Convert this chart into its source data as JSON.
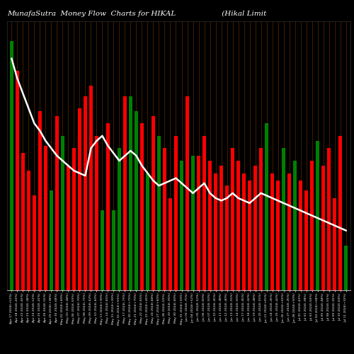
{
  "title": "MunafaSutra  Money Flow  Charts for HIKAL                    (Hikal Limit",
  "background_color": "#000000",
  "bar_colors": [
    "green",
    "red",
    "red",
    "red",
    "red",
    "red",
    "red",
    "green",
    "red",
    "green",
    "red",
    "red",
    "red",
    "red",
    "red",
    "red",
    "green",
    "red",
    "green",
    "green",
    "red",
    "green",
    "green",
    "red",
    "green",
    "red",
    "green",
    "red",
    "red",
    "red",
    "green",
    "red",
    "green",
    "red",
    "red",
    "red",
    "red",
    "red",
    "red",
    "red",
    "red",
    "red",
    "red",
    "red",
    "red",
    "green",
    "red",
    "red",
    "green",
    "red",
    "green",
    "red",
    "red",
    "red",
    "green",
    "red",
    "red",
    "red",
    "red",
    "green"
  ],
  "bar_heights": [
    100,
    88,
    55,
    48,
    38,
    72,
    58,
    40,
    70,
    62,
    50,
    57,
    73,
    78,
    82,
    62,
    32,
    67,
    32,
    57,
    78,
    78,
    72,
    67,
    47,
    70,
    62,
    57,
    37,
    62,
    52,
    78,
    54,
    54,
    62,
    52,
    47,
    50,
    42,
    57,
    52,
    47,
    44,
    50,
    57,
    67,
    47,
    44,
    57,
    47,
    52,
    44,
    40,
    52,
    60,
    50,
    57,
    37,
    62,
    18
  ],
  "line_values": [
    93,
    85,
    79,
    73,
    67,
    64,
    60,
    57,
    54,
    52,
    50,
    48,
    47,
    46,
    57,
    60,
    62,
    58,
    55,
    52,
    54,
    56,
    54,
    50,
    47,
    44,
    42,
    43,
    44,
    45,
    43,
    41,
    39,
    41,
    43,
    39,
    37,
    36,
    37,
    39,
    37,
    36,
    35,
    37,
    39,
    38,
    37,
    36,
    35,
    34,
    33,
    32,
    31,
    30,
    29,
    28,
    27,
    26,
    25,
    24
  ],
  "vline_color": "#6B3000",
  "line_color": "#ffffff",
  "text_color": "#ffffff",
  "title_fontsize": 7.5,
  "bar_width": 0.55,
  "xlabel_labels": [
    "Apr 17 2024(+52%)",
    "Apr 18 2024(-43%)",
    "Apr 22 2024(-45%)",
    "Apr 23 2024(-38%)",
    "Apr 24 2024(-52%)",
    "Apr 25 2024(-41%)",
    "Apr 26 2024(-55%)",
    "Apr 29 2024(+38%)",
    "Apr 30 2024(-68%)",
    "May 02 2024(+60%)",
    "May 03 2024(-48%)",
    "May 06 2024(-55%)",
    "May 07 2024(-70%)",
    "May 08 2024(-75%)",
    "May 09 2024(-62%)",
    "May 10 2024(-60%)",
    "May 13 2024(+30%)",
    "May 14 2024(-65%)",
    "May 15 2024(+30%)",
    "May 16 2024(+55%)",
    "May 17 2024(-75%)",
    "May 20 2024(+75%)",
    "May 21 2024(+70%)",
    "May 22 2024(-65%)",
    "May 23 2024(+45%)",
    "May 24 2024(-68%)",
    "May 27 2024(+60%)",
    "May 28 2024(-55%)",
    "May 29 2024(-35%)",
    "May 30 2024(-60%)",
    "May 31 2024(+50%)",
    "Jun 03 2024(-75%)",
    "Jun 04 2024(+52%)",
    "Jun 05 2024(-52%)",
    "Jun 06 2024(-60%)",
    "Jun 07 2024(-50%)",
    "Jun 10 2024(-45%)",
    "Jun 11 2024(-48%)",
    "Jun 12 2024(-40%)",
    "Jun 13 2024(-55%)",
    "Jun 14 2024(-50%)",
    "Jun 17 2024(-45%)",
    "Jun 18 2024(-42%)",
    "Jun 19 2024(-48%)",
    "Jun 20 2024(-55%)",
    "Jun 21 2024(+65%)",
    "Jun 24 2024(-45%)",
    "Jun 25 2024(-42%)",
    "Jun 26 2024(+55%)",
    "Jun 27 2024(-45%)",
    "Jun 28 2024(+50%)",
    "Jul 01 2024(-42%)",
    "Jul 02 2024(-38%)",
    "Jul 03 2024(-50%)",
    "Jul 04 2024(+58%)",
    "Jul 05 2024(-48%)",
    "Jul 08 2024(-55%)",
    "Jul 09 2024(-35%)",
    "Jul 10 2024(-60%)",
    "Jul 11 2024(+15%)"
  ]
}
